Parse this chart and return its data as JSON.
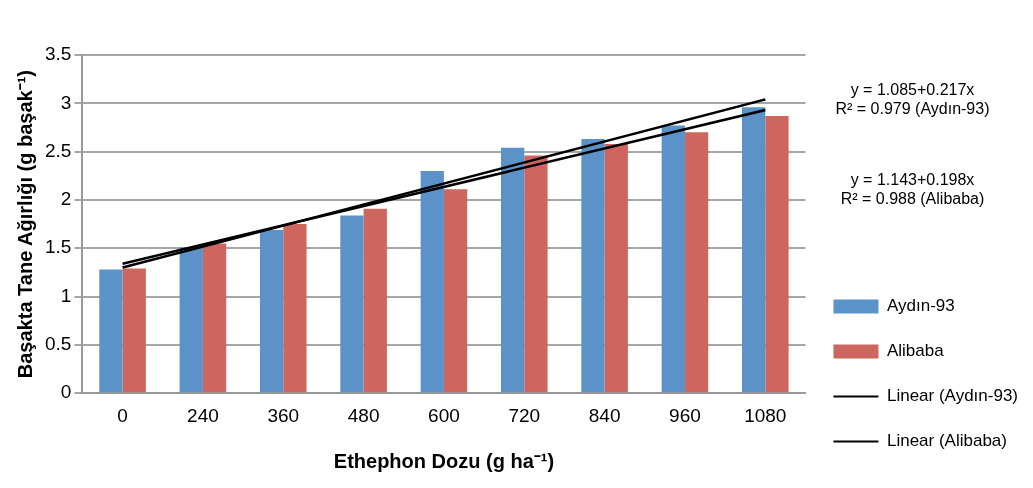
{
  "chart_data": {
    "type": "bar",
    "xlabel": "Ethephon Dozu (g ha⁻¹)",
    "ylabel": "Başakta Tane Ağırlığı (g başak⁻¹)",
    "categories": [
      "0",
      "240",
      "360",
      "480",
      "600",
      "720",
      "840",
      "960",
      "1080"
    ],
    "series": [
      {
        "name": "Aydın-93",
        "color": "#5b93c8",
        "values": [
          1.28,
          1.51,
          1.69,
          1.84,
          2.3,
          2.54,
          2.63,
          2.77,
          2.96
        ]
      },
      {
        "name": "Alibaba",
        "color": "#cd665f",
        "values": [
          1.29,
          1.55,
          1.75,
          1.91,
          2.11,
          2.46,
          2.58,
          2.7,
          2.87
        ]
      },
      {
        "name": "Linear (Aydın-93)",
        "type": "line",
        "color": "#000000",
        "values": [
          1.3,
          null,
          null,
          null,
          null,
          null,
          null,
          null,
          3.04
        ]
      },
      {
        "name": "Linear (Alibaba)",
        "type": "line",
        "color": "#000000",
        "values": [
          1.34,
          null,
          null,
          null,
          null,
          null,
          null,
          null,
          2.93
        ]
      }
    ],
    "ylim": [
      0,
      3.5
    ],
    "yticks": [
      0,
      0.5,
      1,
      1.5,
      2,
      2.5,
      3,
      3.5
    ],
    "grid": "y",
    "legend": "right",
    "marker": "none",
    "annotations": [
      "y = 1.085+0.217x\nR² = 0.979 (Aydın-93)",
      "y =  1.143+0.198x\nR² = 0.988 (Alibaba)"
    ]
  }
}
